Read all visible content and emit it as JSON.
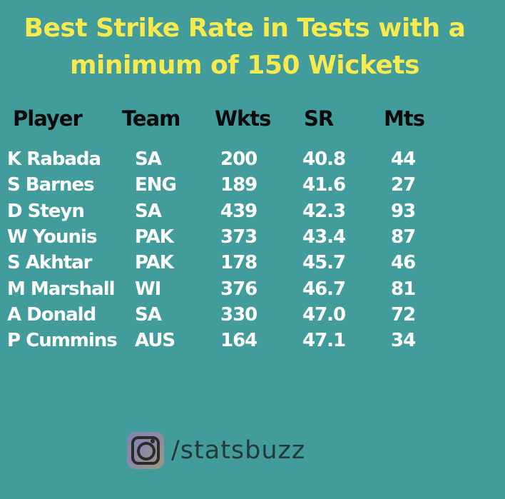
{
  "chart_data": {
    "type": "table",
    "title_lines": [
      "Best Strike Rate in Tests with a",
      "minimum of 150 Wickets"
    ],
    "columns": [
      "Player",
      "Team",
      "Wkts",
      "SR",
      "Mts"
    ],
    "rows": [
      [
        "K Rabada",
        "SA",
        "200",
        "40.8",
        "44"
      ],
      [
        "S Barnes",
        "ENG",
        "189",
        "41.6",
        "27"
      ],
      [
        "D Steyn",
        "SA",
        "439",
        "42.3",
        "93"
      ],
      [
        "W Younis",
        "PAK",
        "373",
        "43.4",
        "87"
      ],
      [
        "S Akhtar",
        "PAK",
        "178",
        "45.7",
        "46"
      ],
      [
        "M Marshall",
        "WI",
        "376",
        "46.7",
        "81"
      ],
      [
        "A Donald",
        "SA",
        "330",
        "47.0",
        "72"
      ],
      [
        "P Cummins",
        "AUS",
        "164",
        "47.1",
        "34"
      ]
    ]
  },
  "footer": {
    "icon": "instagram-icon",
    "handle": "/statsbuzz"
  },
  "colors": {
    "background": "#429c9c",
    "title": "#f6ea4e",
    "header": "#0a0a0a",
    "cells": "#ffffff"
  }
}
